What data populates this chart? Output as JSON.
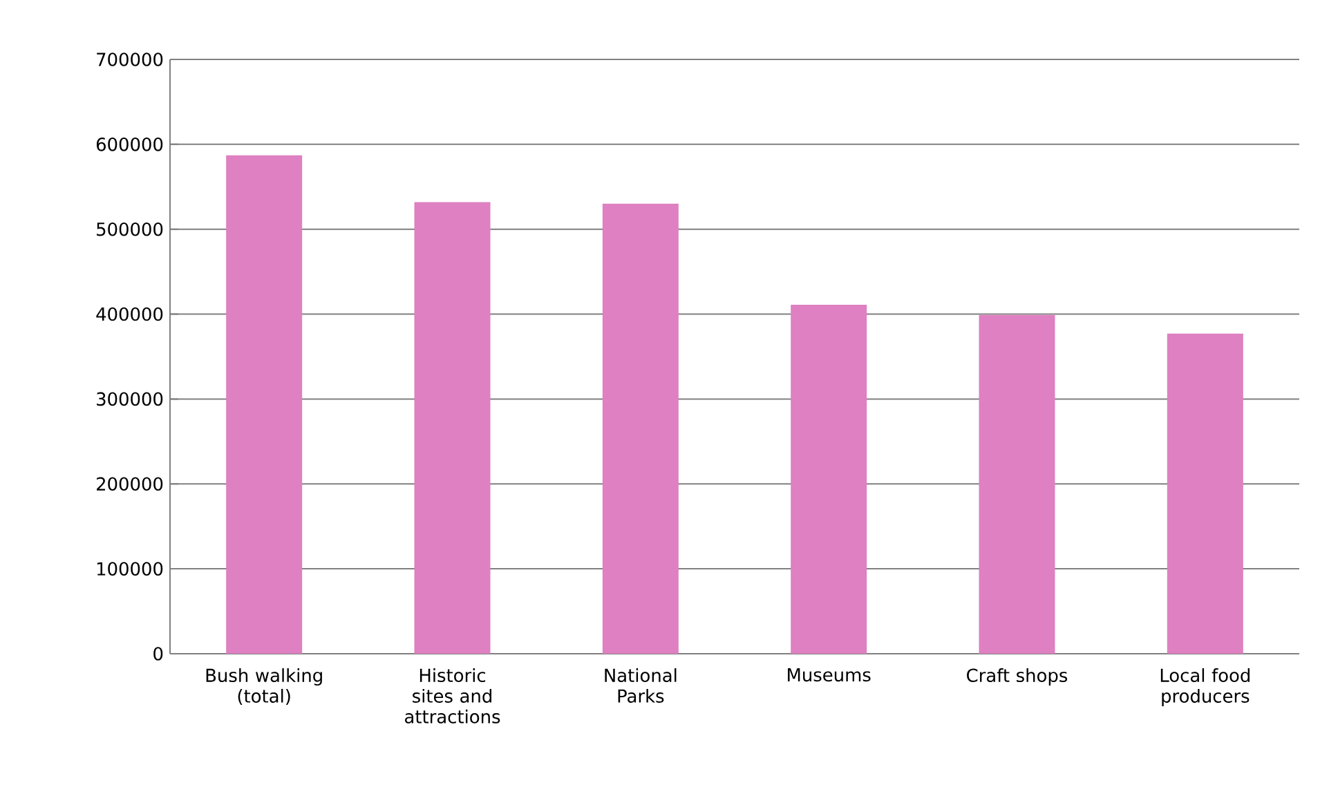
{
  "chart_data": {
    "type": "bar",
    "categories": [
      "Bush walking (total)",
      "Historic sites and attractions",
      "National Parks",
      "Museums",
      "Craft shops",
      "Local food producers"
    ],
    "values": [
      587000,
      532000,
      530000,
      411000,
      399000,
      377000
    ],
    "color": "#de80c1",
    "ylim": [
      0,
      700000
    ],
    "yticks": [
      0,
      100000,
      200000,
      300000,
      400000,
      500000,
      600000,
      700000
    ],
    "grid": "y"
  }
}
